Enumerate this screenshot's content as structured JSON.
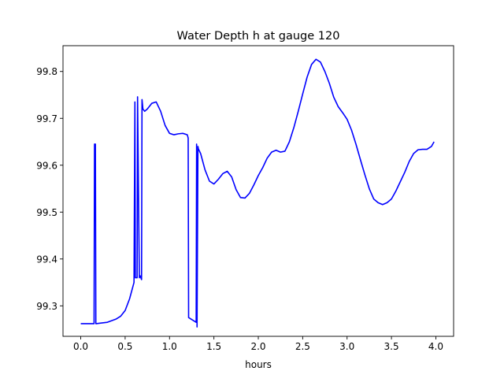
{
  "chart_data": {
    "type": "line",
    "title": "Water Depth h at gauge 120",
    "xlabel": "hours",
    "ylabel": "",
    "xlim": [
      -0.2,
      4.2
    ],
    "ylim": [
      99.235,
      99.855
    ],
    "xticks": [
      0.0,
      0.5,
      1.0,
      1.5,
      2.0,
      2.5,
      3.0,
      3.5,
      4.0
    ],
    "xtick_labels": [
      "0.0",
      "0.5",
      "1.0",
      "1.5",
      "2.0",
      "2.5",
      "3.0",
      "3.5",
      "4.0"
    ],
    "yticks": [
      99.3,
      99.4,
      99.5,
      99.6,
      99.7,
      99.8
    ],
    "ytick_labels": [
      "99.3",
      "99.4",
      "99.5",
      "99.6",
      "99.7",
      "99.8"
    ],
    "grid": false,
    "legend": "none",
    "series": [
      {
        "color": "#0000ff",
        "x": [
          0.0,
          0.15,
          0.155,
          0.165,
          0.17,
          0.175,
          0.3,
          0.4,
          0.45,
          0.5,
          0.55,
          0.6,
          0.6,
          0.61,
          0.615,
          0.635,
          0.64,
          0.66,
          0.665,
          0.67,
          0.685,
          0.69,
          0.695,
          0.7,
          0.72,
          0.75,
          0.8,
          0.85,
          0.9,
          0.95,
          1.0,
          1.05,
          1.1,
          1.15,
          1.2,
          1.21,
          1.215,
          1.3,
          1.305,
          1.31,
          1.32,
          1.325,
          1.35,
          1.4,
          1.45,
          1.5,
          1.55,
          1.6,
          1.65,
          1.7,
          1.75,
          1.8,
          1.85,
          1.9,
          1.95,
          2.0,
          2.05,
          2.1,
          2.15,
          2.2,
          2.25,
          2.3,
          2.35,
          2.4,
          2.45,
          2.5,
          2.55,
          2.6,
          2.65,
          2.7,
          2.75,
          2.8,
          2.85,
          2.9,
          2.95,
          3.0,
          3.05,
          3.1,
          3.15,
          3.2,
          3.25,
          3.3,
          3.35,
          3.4,
          3.45,
          3.5,
          3.55,
          3.6,
          3.65,
          3.7,
          3.75,
          3.8,
          3.85,
          3.9,
          3.95,
          3.98
        ],
        "values": [
          99.262,
          99.262,
          99.645,
          99.645,
          99.262,
          99.262,
          99.265,
          99.272,
          99.278,
          99.29,
          99.315,
          99.35,
          99.353,
          99.735,
          99.36,
          99.36,
          99.746,
          99.36,
          99.362,
          99.364,
          99.356,
          99.74,
          99.73,
          99.72,
          99.715,
          99.72,
          99.732,
          99.735,
          99.715,
          99.685,
          99.668,
          99.665,
          99.667,
          99.668,
          99.665,
          99.658,
          99.275,
          99.265,
          99.645,
          99.255,
          99.64,
          99.635,
          99.625,
          99.59,
          99.566,
          99.56,
          99.57,
          99.582,
          99.587,
          99.575,
          99.548,
          99.531,
          99.53,
          99.54,
          99.558,
          99.578,
          99.595,
          99.615,
          99.628,
          99.632,
          99.628,
          99.63,
          99.65,
          99.68,
          99.715,
          99.752,
          99.788,
          99.815,
          99.826,
          99.82,
          99.8,
          99.775,
          99.745,
          99.725,
          99.712,
          99.698,
          99.675,
          99.645,
          99.612,
          99.58,
          99.55,
          99.528,
          99.52,
          99.516,
          99.52,
          99.528,
          99.545,
          99.565,
          99.585,
          99.608,
          99.625,
          99.633,
          99.634,
          99.634,
          99.64,
          99.65
        ]
      }
    ]
  }
}
